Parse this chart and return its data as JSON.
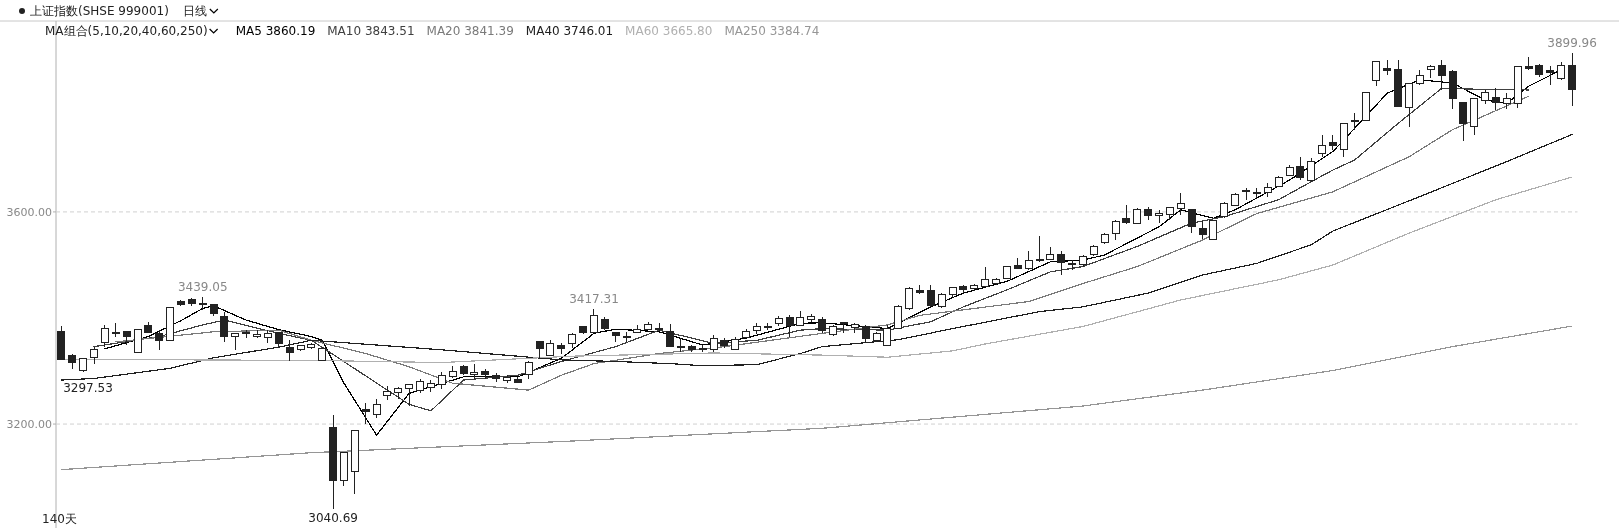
{
  "chart_data": {
    "type": "candlestick",
    "title": "上证指数(SHSE 999001)",
    "subtitle": "日线",
    "legend_title": "MA组合(5,10,20,40,60,250)",
    "legend": "top left",
    "grid": "y",
    "categories": [
      null,
      null,
      null,
      null,
      null,
      null,
      null,
      null,
      null,
      null,
      null,
      null,
      null,
      null,
      null,
      null,
      null,
      null,
      null,
      null,
      null,
      null,
      null,
      null,
      null,
      null,
      null,
      null,
      null,
      null,
      null,
      null,
      null,
      null,
      null,
      null,
      null,
      null,
      null,
      null,
      null,
      null,
      null,
      null,
      null,
      null,
      null,
      null,
      null,
      null,
      null,
      null,
      null,
      null,
      null,
      null,
      null,
      null,
      null,
      null,
      null,
      null,
      null,
      null,
      null,
      null,
      null,
      null,
      null,
      null,
      null,
      null,
      null,
      null,
      null,
      null,
      null,
      null,
      null,
      null,
      null,
      null,
      null,
      null,
      null,
      null,
      null,
      null,
      null,
      null,
      null,
      null,
      null,
      null,
      null,
      null,
      null,
      null,
      null,
      null,
      null,
      null,
      null,
      null,
      null,
      null,
      null,
      null,
      null,
      null,
      null,
      null,
      null,
      null,
      null,
      null,
      null,
      null,
      null,
      null,
      null,
      null,
      null,
      null,
      null,
      null,
      null,
      null,
      null,
      null,
      null,
      null,
      null,
      null,
      null,
      null,
      null,
      null,
      null,
      null
    ],
    "ylim": [
      3004,
      3960
    ],
    "yticks": [
      {
        "value": 3600,
        "label": "3600.00"
      },
      {
        "value": 3200,
        "label": "3200.00"
      }
    ],
    "series": [
      {
        "type": "candlestick",
        "color": "#222222",
        "ohlc": [
          [
            3374,
            3384,
            3321,
            3322
          ],
          [
            3330,
            3332,
            3303,
            3316
          ],
          [
            3301,
            3324,
            3297.53,
            3323
          ],
          [
            3325,
            3346,
            3314,
            3341
          ],
          [
            3354,
            3387,
            3346,
            3380
          ],
          [
            3373,
            3391,
            3365,
            3370
          ],
          [
            3374,
            3375,
            3349,
            3366
          ],
          [
            3335,
            3380,
            3335,
            3379
          ],
          [
            3385,
            3393,
            3371,
            3372
          ],
          [
            3370,
            3377,
            3340,
            3358
          ],
          [
            3358,
            3420,
            3358,
            3419
          ],
          [
            3431,
            3434,
            3423,
            3426
          ],
          [
            3434,
            3437,
            3423,
            3428
          ],
          [
            3425,
            3439.05,
            3415,
            3428
          ],
          [
            3425,
            3426,
            3404,
            3409
          ],
          [
            3402,
            3412,
            3355,
            3365
          ],
          [
            3365,
            3371,
            3340,
            3370
          ],
          [
            3372,
            3377,
            3362,
            3370
          ],
          [
            3365,
            3377,
            3363,
            3369
          ],
          [
            3363,
            3377,
            3352,
            3371
          ],
          [
            3372,
            3374,
            3346,
            3351
          ],
          [
            3344,
            3358,
            3318,
            3335
          ],
          [
            3340,
            3350,
            3338,
            3348
          ],
          [
            3344,
            3353,
            3342,
            3350
          ],
          [
            3319,
            3345,
            3318,
            3343
          ],
          [
            3193,
            3217,
            3040.69,
            3094
          ],
          [
            3093,
            3147,
            3084,
            3146
          ],
          [
            3110,
            3187,
            3069,
            3187
          ],
          [
            3228,
            3239,
            3201,
            3223
          ],
          [
            3218,
            3248,
            3211,
            3236
          ],
          [
            3253,
            3272,
            3245,
            3261
          ],
          [
            3259,
            3270,
            3248,
            3267
          ],
          [
            3267,
            3275,
            3234,
            3275
          ],
          [
            3264,
            3285,
            3258,
            3281
          ],
          [
            3269,
            3283,
            3261,
            3277
          ],
          [
            3274,
            3299,
            3267,
            3291
          ],
          [
            3289,
            3309,
            3286,
            3300
          ],
          [
            3309,
            3311,
            3292,
            3296
          ],
          [
            3294,
            3314,
            3285,
            3297
          ],
          [
            3300,
            3303,
            3285,
            3294
          ],
          [
            3291,
            3296,
            3280,
            3286
          ],
          [
            3282,
            3292,
            3277,
            3287
          ],
          [
            3284,
            3289,
            3277,
            3279
          ],
          [
            3294,
            3318,
            3285,
            3316
          ],
          [
            3355,
            3357,
            3324,
            3343
          ],
          [
            3330,
            3358,
            3328,
            3352
          ],
          [
            3349,
            3352,
            3333,
            3343
          ],
          [
            3352,
            3371,
            3343,
            3368
          ],
          [
            3384,
            3385,
            3370,
            3372
          ],
          [
            3373,
            3417.31,
            3372,
            3404
          ],
          [
            3397,
            3402,
            3377,
            3380
          ],
          [
            3373,
            3374,
            3355,
            3367
          ],
          [
            3365,
            3374,
            3355,
            3366
          ],
          [
            3372,
            3387,
            3371,
            3379
          ],
          [
            3379,
            3393,
            3377,
            3387
          ],
          [
            3381,
            3390,
            3376,
            3379
          ],
          [
            3375,
            3389,
            3346,
            3347
          ],
          [
            3345,
            3362,
            3336,
            3346
          ],
          [
            3347,
            3349,
            3335,
            3340
          ],
          [
            3343,
            3349,
            3336,
            3340
          ],
          [
            3340,
            3368,
            3336,
            3362
          ],
          [
            3358,
            3362,
            3343,
            3349
          ],
          [
            3341,
            3365,
            3340,
            3360
          ],
          [
            3363,
            3379,
            3362,
            3375
          ],
          [
            3377,
            3390,
            3370,
            3384
          ],
          [
            3383,
            3391,
            3377,
            3384
          ],
          [
            3389,
            3404,
            3384,
            3399
          ],
          [
            3401,
            3406,
            3365,
            3385
          ],
          [
            3385,
            3413,
            3384,
            3401
          ],
          [
            3397,
            3408,
            3393,
            3402
          ],
          [
            3397,
            3402,
            3371,
            3377
          ],
          [
            3368,
            3386,
            3366,
            3384
          ],
          [
            3389,
            3393,
            3372,
            3391
          ],
          [
            3383,
            3391,
            3372,
            3387
          ],
          [
            3384,
            3387,
            3352,
            3362
          ],
          [
            3358,
            3374,
            3355,
            3371
          ],
          [
            3349,
            3387,
            3347,
            3380
          ],
          [
            3380,
            3424,
            3379,
            3421
          ],
          [
            3418,
            3458,
            3416,
            3456
          ],
          [
            3452,
            3463,
            3446,
            3448
          ],
          [
            3451,
            3462,
            3420,
            3423
          ],
          [
            3421,
            3447,
            3418,
            3445
          ],
          [
            3445,
            3459,
            3440,
            3458
          ],
          [
            3459,
            3462,
            3448,
            3454
          ],
          [
            3455,
            3464,
            3450,
            3462
          ],
          [
            3459,
            3497,
            3458,
            3473
          ],
          [
            3465,
            3475,
            3462,
            3473
          ],
          [
            3475,
            3498,
            3473,
            3497
          ],
          [
            3499,
            3513,
            3492,
            3493
          ],
          [
            3493,
            3527,
            3491,
            3509
          ],
          [
            3510,
            3554,
            3506,
            3508
          ],
          [
            3511,
            3533,
            3509,
            3519
          ],
          [
            3519,
            3527,
            3481,
            3504
          ],
          [
            3500,
            3509,
            3490,
            3503
          ],
          [
            3500,
            3518,
            3497,
            3516
          ],
          [
            3519,
            3537,
            3517,
            3535
          ],
          [
            3542,
            3560,
            3540,
            3558
          ],
          [
            3560,
            3585,
            3547,
            3582
          ],
          [
            3588,
            3613,
            3577,
            3580
          ],
          [
            3579,
            3607,
            3577,
            3605
          ],
          [
            3604,
            3609,
            3585,
            3594
          ],
          [
            3594,
            3603,
            3580,
            3597
          ],
          [
            3596,
            3610,
            3585,
            3609
          ],
          [
            3607,
            3636,
            3594,
            3615
          ],
          [
            3604,
            3605,
            3561,
            3572
          ],
          [
            3568,
            3582,
            3548,
            3558
          ],
          [
            3548,
            3585,
            3547,
            3583
          ],
          [
            3592,
            3618,
            3588,
            3616
          ],
          [
            3613,
            3635,
            3612,
            3633
          ],
          [
            3638,
            3645,
            3623,
            3640
          ],
          [
            3634,
            3645,
            3626,
            3637
          ],
          [
            3636,
            3655,
            3629,
            3646
          ],
          [
            3648,
            3667,
            3647,
            3665
          ],
          [
            3668,
            3689,
            3667,
            3684
          ],
          [
            3686,
            3704,
            3660,
            3665
          ],
          [
            3660,
            3701,
            3657,
            3696
          ],
          [
            3711,
            3745,
            3703,
            3726
          ],
          [
            3730,
            3745,
            3717,
            3726
          ],
          [
            3717,
            3768,
            3704,
            3766
          ],
          [
            3771,
            3787,
            3755,
            3772
          ],
          [
            3772,
            3826,
            3771,
            3825
          ],
          [
            3848,
            3885,
            3838,
            3884
          ],
          [
            3871,
            3887,
            3859,
            3867
          ],
          [
            3869,
            3887,
            3798,
            3799
          ],
          [
            3796,
            3843,
            3760,
            3843
          ],
          [
            3843,
            3867,
            3840,
            3857
          ],
          [
            3868,
            3877,
            3852,
            3874
          ],
          [
            3876,
            3886,
            3829,
            3857
          ],
          [
            3865,
            3868,
            3794,
            3813
          ],
          [
            3807,
            3808,
            3733,
            3766
          ],
          [
            3762,
            3814,
            3745,
            3813
          ],
          [
            3811,
            3829,
            3804,
            3825
          ],
          [
            3816,
            3833,
            3792,
            3806
          ],
          [
            3805,
            3824,
            3794,
            3813
          ],
          [
            3805,
            3874,
            3796,
            3874
          ],
          [
            3874,
            3893,
            3867,
            3870
          ],
          [
            3877,
            3879,
            3855,
            3859
          ],
          [
            3866,
            3875,
            3840,
            3862
          ],
          [
            3852,
            3882,
            3848,
            3876
          ],
          [
            3876,
            3899.96,
            3800,
            3831
          ]
        ]
      },
      {
        "type": "line",
        "name": "MA5 3860.19",
        "color": "#000000",
        "values": [
          null,
          null,
          null,
          null,
          3342,
          null,
          null,
          null,
          3365,
          null,
          null,
          3395,
          null,
          3418,
          3423,
          null,
          null,
          3396,
          null,
          null,
          3378,
          null,
          null,
          3365,
          3358,
          null,
          3277,
          null,
          null,
          3179,
          null,
          null,
          3258,
          null,
          null,
          null,
          null,
          3289,
          null,
          null,
          null,
          null,
          3289,
          null,
          null,
          null,
          3324,
          null,
          null,
          3371,
          null,
          3379,
          null,
          null,
          null,
          3374,
          null,
          null,
          null,
          3349,
          null,
          null,
          null,
          3362,
          null,
          null,
          null,
          null,
          3390,
          null,
          3391,
          null,
          null,
          null,
          null,
          null,
          3380,
          null,
          null,
          null,
          3421,
          null,
          null,
          3447,
          null,
          null,
          null,
          3469,
          null,
          null,
          null,
          3506,
          null,
          null,
          3509,
          null,
          3519,
          null,
          null,
          null,
          null,
          3572,
          null,
          3604,
          null,
          null,
          3588,
          null,
          3604,
          null,
          null,
          null,
          null,
          3660,
          null,
          null,
          null,
          3714,
          null,
          null,
          null,
          null,
          3824,
          null,
          null,
          3849,
          null,
          null,
          3843,
          null,
          null,
          3811,
          null,
          3805,
          null,
          3837,
          null,
          null,
          3868,
          null
        ]
      },
      {
        "type": "line",
        "name": "MA10 3843.51",
        "color": "#404040",
        "values": [
          null,
          null,
          null,
          3346,
          null,
          null,
          null,
          null,
          null,
          3365,
          null,
          null,
          null,
          3387,
          null,
          3396,
          null,
          null,
          null,
          null,
          3371,
          null,
          null,
          3358,
          null,
          null,
          null,
          null,
          null,
          null,
          null,
          null,
          3237,
          null,
          3225,
          null,
          null,
          3283,
          null,
          null,
          null,
          null,
          3292,
          null,
          null,
          null,
          3318,
          null,
          null,
          null,
          null,
          3346,
          null,
          null,
          null,
          3377,
          null,
          null,
          null,
          null,
          3352,
          null,
          null,
          null,
          3358,
          null,
          null,
          null,
          3377,
          null,
          3380,
          null,
          null,
          null,
          null,
          null,
          3377,
          null,
          null,
          null,
          3393,
          null,
          null,
          3421,
          null,
          null,
          null,
          3453,
          null,
          null,
          null,
          3487,
          null,
          null,
          3497,
          null,
          null,
          null,
          null,
          3535,
          null,
          null,
          null,
          null,
          3579,
          null,
          null,
          3591,
          null,
          null,
          null,
          null,
          3623,
          null,
          null,
          3657,
          null,
          3679,
          null,
          3698,
          null,
          null,
          null,
          3767,
          null,
          null,
          null,
          3833,
          null,
          null,
          null,
          3831,
          null,
          null,
          null,
          3830,
          null,
          null,
          null,
          null
        ]
      },
      {
        "type": "line",
        "name": "MA20 3841.39",
        "color": "#7a7a7a",
        "values": [
          null,
          null,
          null,
          null,
          null,
          3355,
          null,
          null,
          null,
          null,
          null,
          null,
          null,
          null,
          3374,
          null,
          null,
          null,
          null,
          null,
          3377,
          null,
          null,
          3358,
          null,
          null,
          null,
          null,
          3333,
          null,
          null,
          null,
          3308,
          null,
          null,
          null,
          3277,
          null,
          null,
          null,
          null,
          null,
          null,
          3264,
          null,
          null,
          3292,
          null,
          null,
          3314,
          null,
          null,
          null,
          null,
          null,
          3333,
          null,
          null,
          null,
          null,
          null,
          3346,
          null,
          null,
          null,
          null,
          null,
          null,
          null,
          null,
          3371,
          null,
          null,
          null,
          null,
          null,
          3387,
          null,
          null,
          3405,
          null,
          null,
          null,
          null,
          null,
          null,
          null,
          null,
          null,
          3431,
          null,
          null,
          null,
          null,
          3465,
          null,
          null,
          null,
          null,
          3497,
          null,
          null,
          null,
          null,
          null,
          3547,
          null,
          null,
          null,
          null,
          3597,
          null,
          null,
          null,
          null,
          null,
          null,
          3638,
          null,
          null,
          null,
          null,
          null,
          null,
          3704,
          null,
          null,
          null,
          3755,
          null,
          null,
          null,
          null,
          null,
          null,
          3818,
          null,
          null,
          null,
          null
        ]
      },
      {
        "type": "line",
        "name": "MA40 3746.01",
        "color": "#202020",
        "values": [
          3283,
          null,
          null,
          3286,
          null,
          null,
          null,
          null,
          null,
          null,
          3305,
          null,
          null,
          null,
          3325,
          null,
          null,
          null,
          null,
          null,
          3345,
          null,
          null,
          3358,
          null,
          null,
          null,
          null,
          null,
          null,
          null,
          null,
          null,
          null,
          null,
          3340,
          null,
          null,
          null,
          null,
          null,
          null,
          null,
          null,
          null,
          null,
          3321,
          null,
          null,
          null,
          null,
          3318,
          null,
          null,
          null,
          null,
          3314,
          null,
          null,
          3310,
          null,
          null,
          null,
          null,
          3312,
          null,
          null,
          null,
          3333,
          null,
          3346,
          null,
          null,
          null,
          null,
          null,
          null,
          3359,
          null,
          null,
          null,
          null,
          3380,
          null,
          null,
          null,
          null,
          null,
          null,
          null,
          3412,
          null,
          null,
          null,
          3421,
          null,
          null,
          null,
          null,
          null,
          3447,
          null,
          null,
          null,
          null,
          3481,
          null,
          null,
          null,
          null,
          3503,
          null,
          null,
          null,
          null,
          3538,
          null,
          3564,
          null,
          null,
          null,
          null,
          null,
          null,
          null,
          3629,
          null,
          null,
          null,
          null,
          null,
          null,
          null,
          3695,
          null,
          null,
          null,
          null,
          null,
          3746.01
        ]
      },
      {
        "type": "line",
        "name": "MA60 3665.80",
        "color": "#b0b0b0",
        "values": [
          3322,
          null,
          null,
          null,
          null,
          null,
          null,
          null,
          null,
          null,
          null,
          null,
          null,
          null,
          null,
          null,
          null,
          null,
          null,
          null,
          null,
          null,
          null,
          3320,
          null,
          null,
          null,
          null,
          null,
          null,
          null,
          null,
          null,
          null,
          null,
          3316,
          null,
          null,
          null,
          null,
          null,
          null,
          null,
          null,
          null,
          null,
          null,
          3328,
          null,
          null,
          null,
          null,
          null,
          null,
          null,
          null,
          null,
          null,
          null,
          null,
          3334,
          null,
          null,
          null,
          null,
          null,
          null,
          null,
          null,
          null,
          3330,
          null,
          null,
          null,
          null,
          null,
          3326,
          null,
          null,
          null,
          null,
          null,
          3338,
          null,
          null,
          3351,
          null,
          null,
          null,
          null,
          null,
          null,
          null,
          null,
          3384,
          null,
          null,
          null,
          null,
          null,
          null,
          null,
          null,
          3434,
          null,
          null,
          null,
          null,
          null,
          null,
          null,
          null,
          3472,
          null,
          null,
          null,
          null,
          3500,
          null,
          null,
          null,
          null,
          null,
          null,
          3560,
          null,
          null,
          null,
          null,
          null,
          null,
          null,
          3623,
          null,
          null,
          null,
          null,
          null,
          null,
          3665.8
        ]
      },
      {
        "type": "line",
        "name": "MA250 3384.74",
        "color": "#969696",
        "values": [
          3114,
          null,
          null,
          null,
          null,
          null,
          null,
          null,
          null,
          null,
          null,
          null,
          null,
          null,
          null,
          null,
          null,
          null,
          null,
          null,
          null,
          null,
          null,
          3146,
          null,
          null,
          null,
          null,
          null,
          null,
          null,
          null,
          null,
          null,
          null,
          null,
          null,
          null,
          null,
          null,
          null,
          null,
          null,
          null,
          null,
          null,
          null,
          3168,
          null,
          null,
          null,
          null,
          null,
          null,
          null,
          null,
          null,
          null,
          null,
          null,
          null,
          null,
          null,
          null,
          null,
          null,
          null,
          null,
          null,
          null,
          3192,
          null,
          null,
          null,
          null,
          null,
          null,
          null,
          null,
          null,
          null,
          null,
          null,
          null,
          null,
          null,
          null,
          null,
          null,
          null,
          null,
          null,
          null,
          null,
          3234,
          null,
          null,
          null,
          null,
          null,
          null,
          null,
          null,
          null,
          null,
          3264,
          null,
          null,
          null,
          null,
          null,
          null,
          null,
          null,
          null,
          null,
          null,
          3301,
          null,
          null,
          null,
          null,
          null,
          null,
          null,
          null,
          null,
          null,
          3346,
          null,
          null,
          null,
          null,
          null,
          null,
          null,
          null,
          null,
          null,
          3384.74
        ]
      }
    ],
    "annotations": [
      {
        "text": "3439.05",
        "y": 3439.05
      },
      {
        "text": "3297.53",
        "y": 3297.53
      },
      {
        "text": "3040.69",
        "y": 3040.69
      },
      {
        "text": "3417.31",
        "y": 3417.31
      },
      {
        "text": "3899.96",
        "y": 3899.96
      },
      "140天"
    ]
  }
}
